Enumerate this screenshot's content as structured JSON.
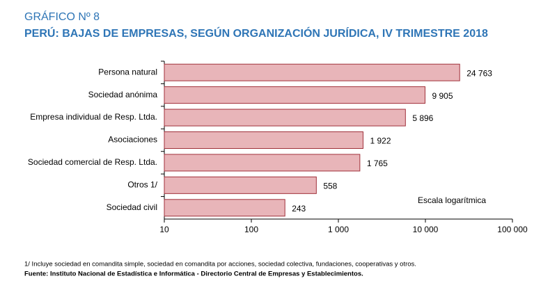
{
  "chart_data": {
    "type": "bar",
    "orientation": "horizontal",
    "label": "GRÁFICO Nº 8",
    "title": "PERÚ: BAJAS DE EMPRESAS, SEGÚN ORGANIZACIÓN JURÍDICA, IV TRIMESTRE 2018",
    "categories": [
      "Persona natural",
      "Sociedad anónima",
      "Empresa individual de Resp. Ltda.",
      "Asociaciones",
      "Sociedad comercial de Resp. Ltda.",
      "Otros 1/",
      "Sociedad civil"
    ],
    "values": [
      24763,
      9905,
      5896,
      1922,
      1765,
      558,
      243
    ],
    "value_labels": [
      "24 763",
      "9 905",
      "5 896",
      "1 922",
      "1 765",
      "558",
      "243"
    ],
    "color": "#e8b5b9",
    "edge_color": "#a0303a",
    "log_scale": true,
    "xlim": [
      10,
      100000
    ],
    "xticks": [
      10,
      100,
      {
        "value": 1000,
        "label": "1 000"
      },
      {
        "value": 10000,
        "label": "10 000"
      },
      {
        "value": 100000,
        "label": "100 000"
      }
    ],
    "annotation": "Escala logarítmica",
    "footnote": "1/ Incluye sociedad en comandita simple, sociedad en comandita por acciones, sociedad colectiva, fundaciones, cooperativas y otros.",
    "source": "Fuente: Instituto Nacional de Estadística e Informática - Directorio Central de Empresas y Establecimientos."
  }
}
